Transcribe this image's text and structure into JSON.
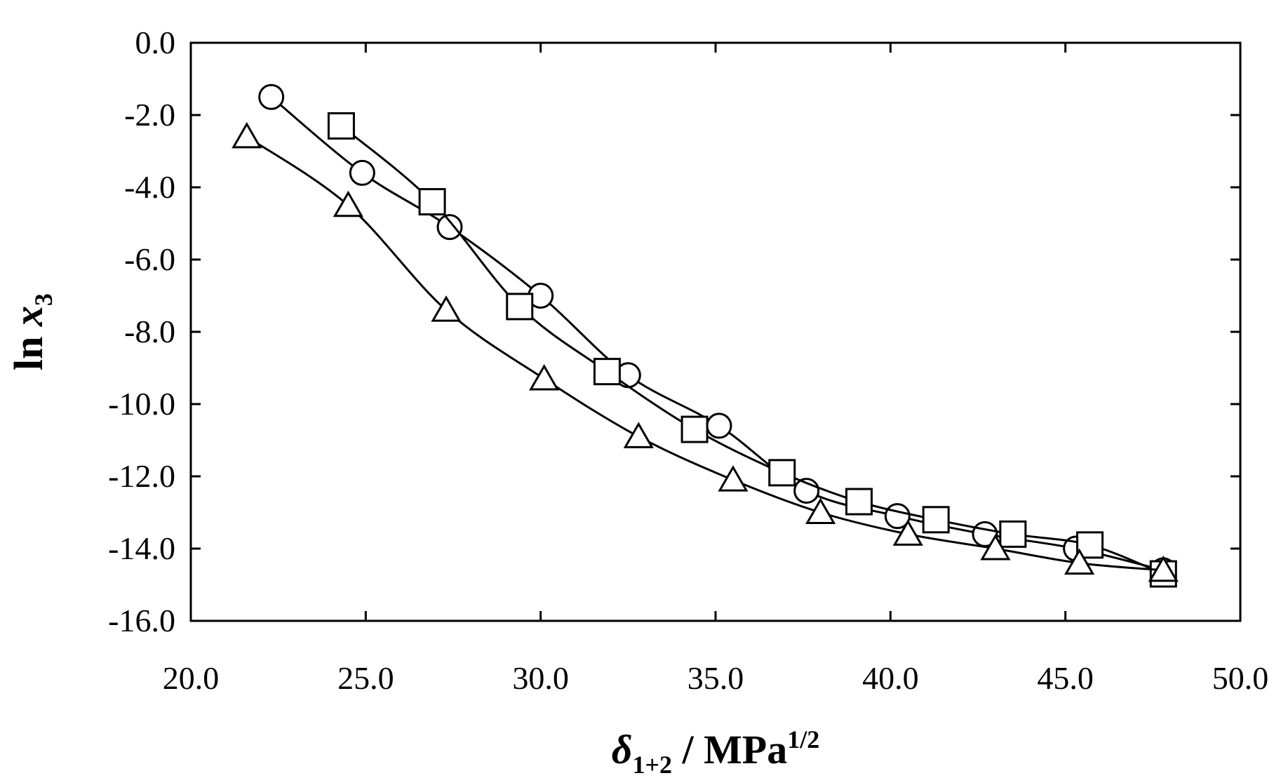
{
  "chart_data": {
    "type": "line",
    "title": "",
    "xlabel": {
      "main": "δ",
      "sub": "1+2",
      "rest": " / MPa",
      "sup": "1/2"
    },
    "ylabel": {
      "main": "ln ",
      "italic": "x",
      "sub": "3"
    },
    "xlim": [
      20,
      50
    ],
    "ylim": [
      -16,
      0
    ],
    "xticks": [
      20,
      25,
      30,
      35,
      40,
      45,
      50
    ],
    "yticks": [
      0,
      -2,
      -4,
      -6,
      -8,
      -10,
      -12,
      -14,
      -16
    ],
    "xtick_labels": [
      "20.0",
      "25.0",
      "30.0",
      "35.0",
      "40.0",
      "45.0",
      "50.0"
    ],
    "ytick_labels": [
      "0.0",
      "-2.0",
      "-4.0",
      "-6.0",
      "-8.0",
      "-10.0",
      "-12.0",
      "-14.0",
      "-16.0"
    ],
    "grid": false,
    "legend": "none",
    "series": [
      {
        "name": "circle",
        "marker": "circle",
        "x": [
          22.3,
          24.9,
          27.4,
          30.0,
          32.5,
          35.1,
          37.6,
          40.2,
          42.7,
          45.3,
          47.8
        ],
        "y": [
          -1.5,
          -3.6,
          -5.1,
          -7.0,
          -9.2,
          -10.6,
          -12.4,
          -13.1,
          -13.6,
          -14.0,
          -14.6
        ]
      },
      {
        "name": "square",
        "marker": "square",
        "x": [
          24.3,
          26.9,
          29.4,
          31.9,
          34.4,
          36.9,
          39.1,
          41.3,
          43.5,
          45.7,
          47.8
        ],
        "y": [
          -2.3,
          -4.4,
          -7.3,
          -9.1,
          -10.7,
          -11.9,
          -12.7,
          -13.2,
          -13.6,
          -13.9,
          -14.7
        ]
      },
      {
        "name": "triangle",
        "marker": "triangle",
        "x": [
          21.6,
          24.5,
          27.3,
          30.1,
          32.8,
          35.5,
          38.0,
          40.5,
          43.0,
          45.4,
          47.8
        ],
        "y": [
          -2.6,
          -4.5,
          -7.4,
          -9.3,
          -10.9,
          -12.1,
          -13.0,
          -13.6,
          -14.0,
          -14.4,
          -14.6
        ]
      }
    ]
  }
}
